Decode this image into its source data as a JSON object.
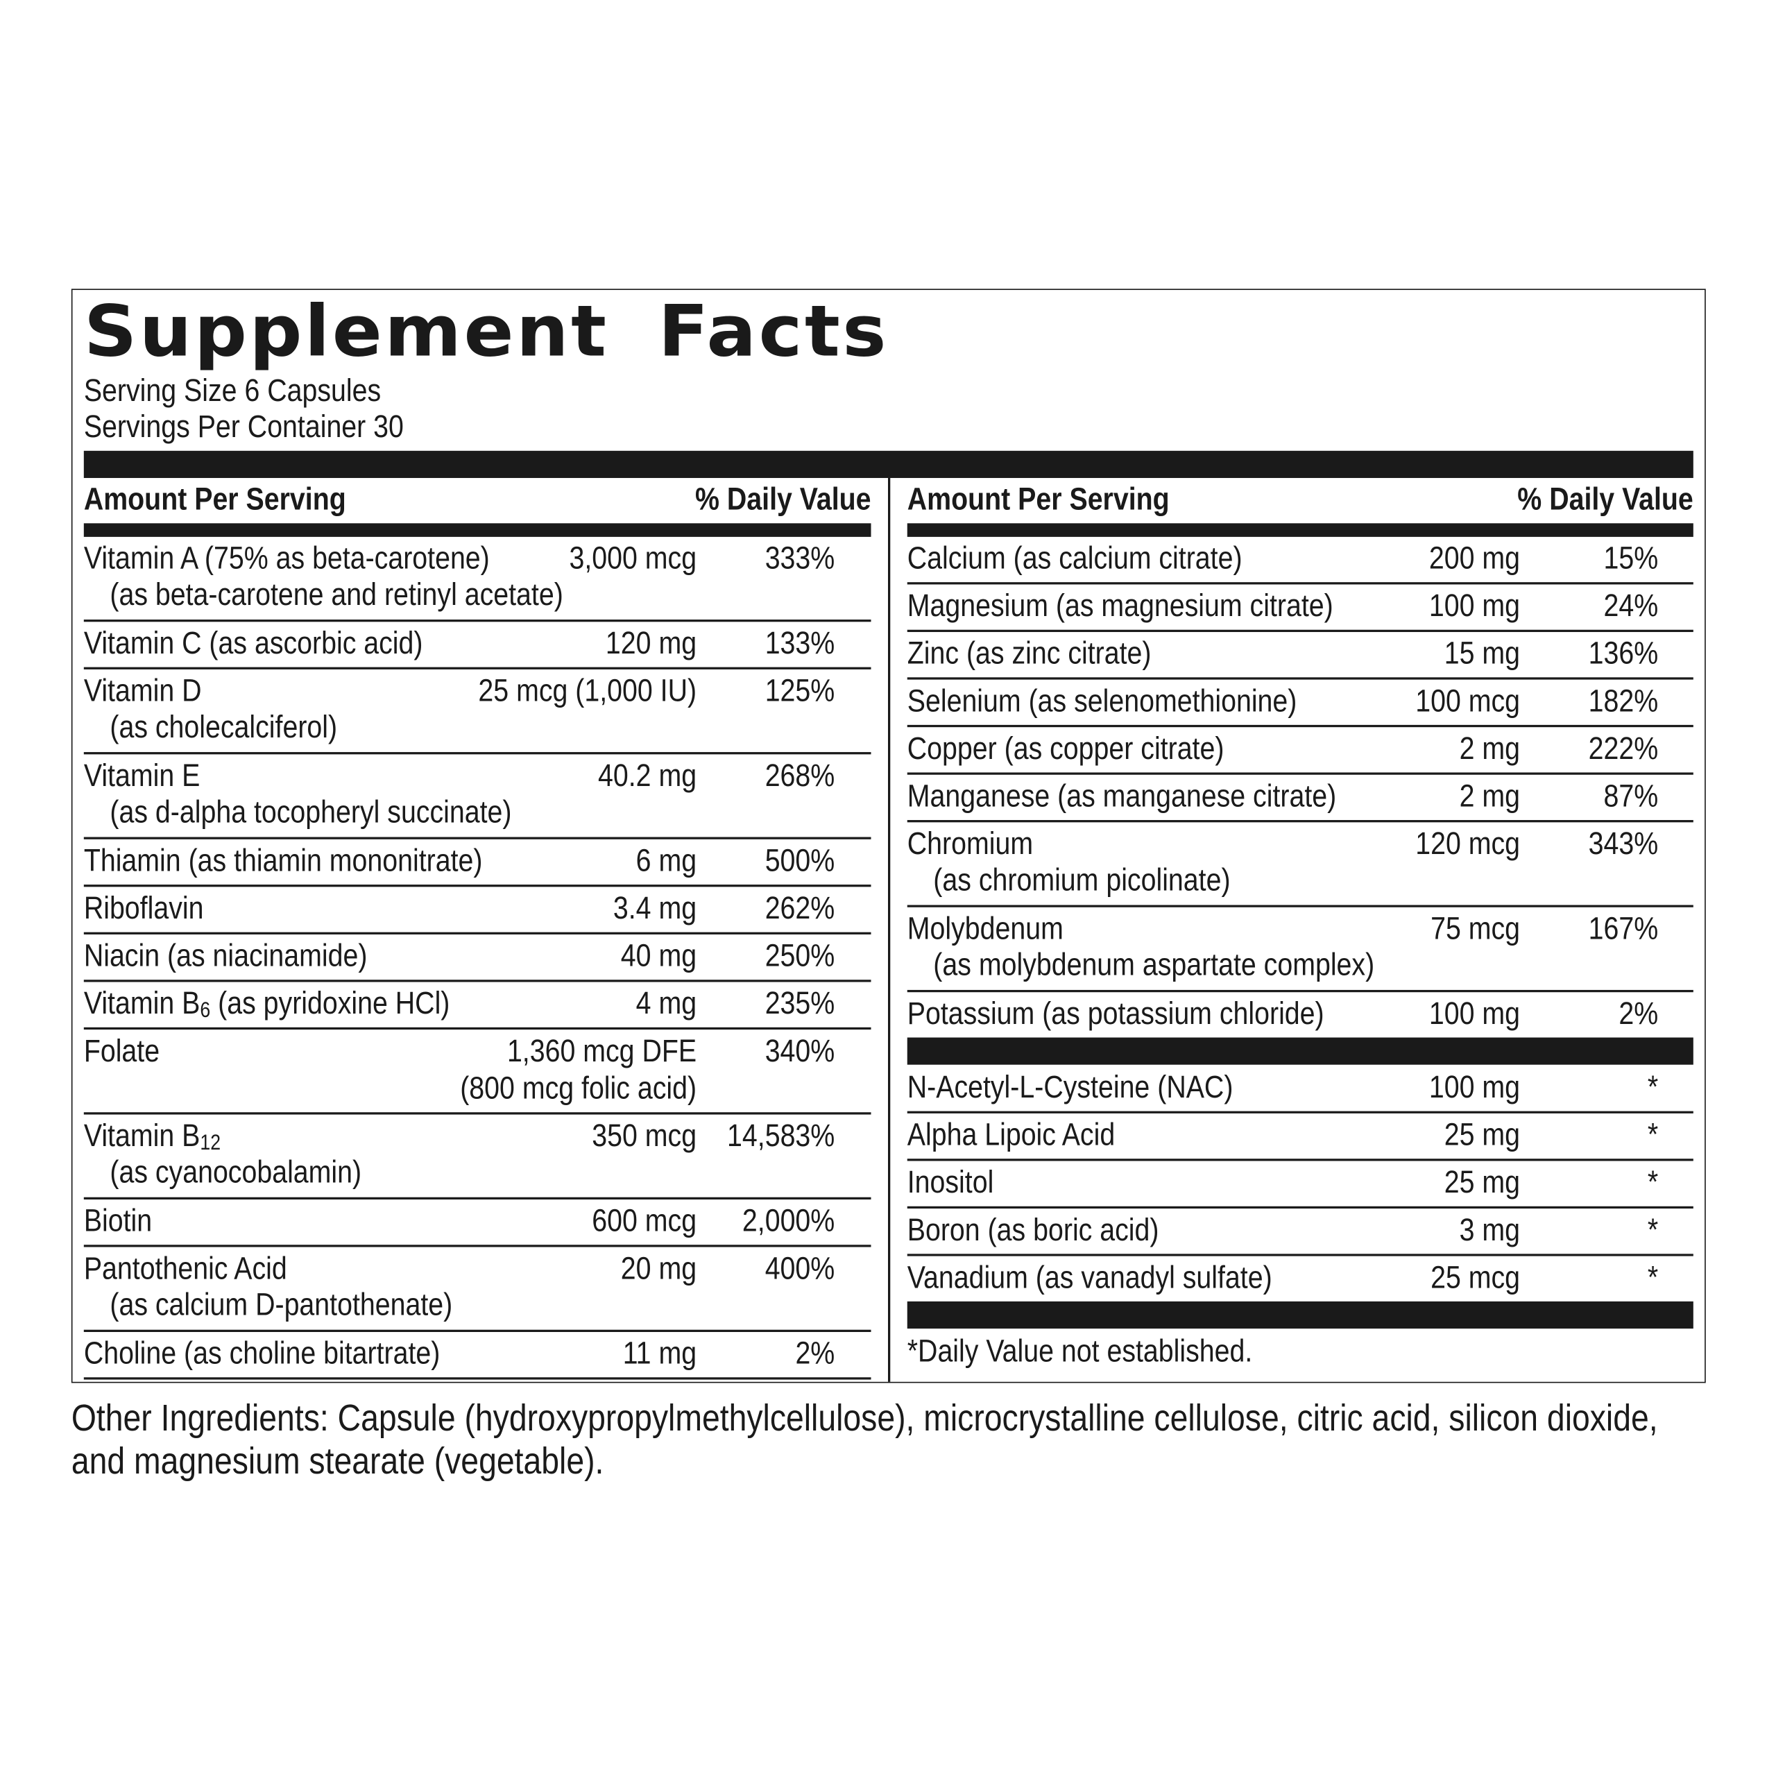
{
  "header": {
    "title": "Supplement Facts",
    "serving_size": "Serving Size 6 Capsules",
    "servings_per_container": "Servings Per Container 30"
  },
  "table": {
    "column_headers": {
      "amount_per_serving": "Amount Per Serving",
      "daily_value": "% Daily Value"
    },
    "left_column": {
      "rows": [
        {
          "name": "Vitamin A (75% as beta-carotene)",
          "detail": "(as beta-carotene and retinyl acetate)",
          "amount": "3,000 mcg",
          "dv": "333%"
        },
        {
          "name": "Vitamin C (as ascorbic acid)",
          "amount": "120 mg",
          "dv": "133%"
        },
        {
          "name": "Vitamin D",
          "detail": "(as cholecalciferol)",
          "amount": "25 mcg (1,000 IU)",
          "dv": "125%"
        },
        {
          "name": "Vitamin E",
          "detail": "(as d-alpha tocopheryl succinate)",
          "amount": "40.2 mg",
          "dv": "268%"
        },
        {
          "name": "Thiamin (as thiamin mononitrate)",
          "amount": "6 mg",
          "dv": "500%"
        },
        {
          "name": "Riboflavin",
          "amount": "3.4 mg",
          "dv": "262%"
        },
        {
          "name": "Niacin (as niacinamide)",
          "amount": "40 mg",
          "dv": "250%"
        },
        {
          "name": "Vitamin B",
          "sub": "6",
          "suffix": " (as pyridoxine HCl)",
          "amount": "4 mg",
          "dv": "235%"
        },
        {
          "name": "Folate",
          "amount": "1,360 mcg DFE",
          "amount_detail": "(800 mcg folic acid)",
          "dv": "340%"
        },
        {
          "name": "Vitamin B",
          "sub": "12",
          "detail": "(as cyanocobalamin)",
          "amount": "350 mcg",
          "dv": "14,583%"
        },
        {
          "name": "Biotin",
          "amount": "600 mcg",
          "dv": "2,000%"
        },
        {
          "name": "Pantothenic Acid",
          "detail": "(as calcium D-pantothenate)",
          "amount": "20 mg",
          "dv": "400%"
        },
        {
          "name": "Choline (as choline bitartrate)",
          "amount": "11 mg",
          "dv": "2%"
        }
      ]
    },
    "right_column": {
      "rows": [
        {
          "name": "Calcium (as calcium citrate)",
          "amount": "200 mg",
          "dv": "15%"
        },
        {
          "name": "Magnesium (as magnesium citrate)",
          "amount": "100 mg",
          "dv": "24%"
        },
        {
          "name": "Zinc (as zinc citrate)",
          "amount": "15 mg",
          "dv": "136%"
        },
        {
          "name": "Selenium (as selenomethionine)",
          "amount": "100 mcg",
          "dv": "182%"
        },
        {
          "name": "Copper (as copper citrate)",
          "amount": "2 mg",
          "dv": "222%"
        },
        {
          "name": "Manganese (as manganese citrate)",
          "amount": "2 mg",
          "dv": "87%"
        },
        {
          "name": "Chromium",
          "detail": "(as chromium picolinate)",
          "amount": "120 mcg",
          "dv": "343%"
        },
        {
          "name": "Molybdenum",
          "detail": "(as molybdenum aspartate complex)",
          "amount": "75 mcg",
          "dv": "167%"
        },
        {
          "name": "Potassium (as potassium chloride)",
          "amount": "100 mg",
          "dv": "2%"
        }
      ],
      "other_rows": [
        {
          "name": "N-Acetyl-L-Cysteine (NAC)",
          "amount": "100 mg",
          "dv": "*"
        },
        {
          "name": "Alpha Lipoic Acid",
          "amount": "25 mg",
          "dv": "*"
        },
        {
          "name": "Inositol",
          "amount": "25 mg",
          "dv": "*"
        },
        {
          "name": "Boron (as boric acid)",
          "amount": "3 mg",
          "dv": "*"
        },
        {
          "name": "Vanadium (as vanadyl sulfate)",
          "amount": "25 mcg",
          "dv": "*"
        }
      ],
      "footnote": "*Daily Value not established."
    }
  },
  "other_ingredients": "Other Ingredients: Capsule (hydroxypropylmethylcellulose), microcrystalline cellulose, citric acid, silicon dioxide, and magnesium stearate (vegetable)."
}
